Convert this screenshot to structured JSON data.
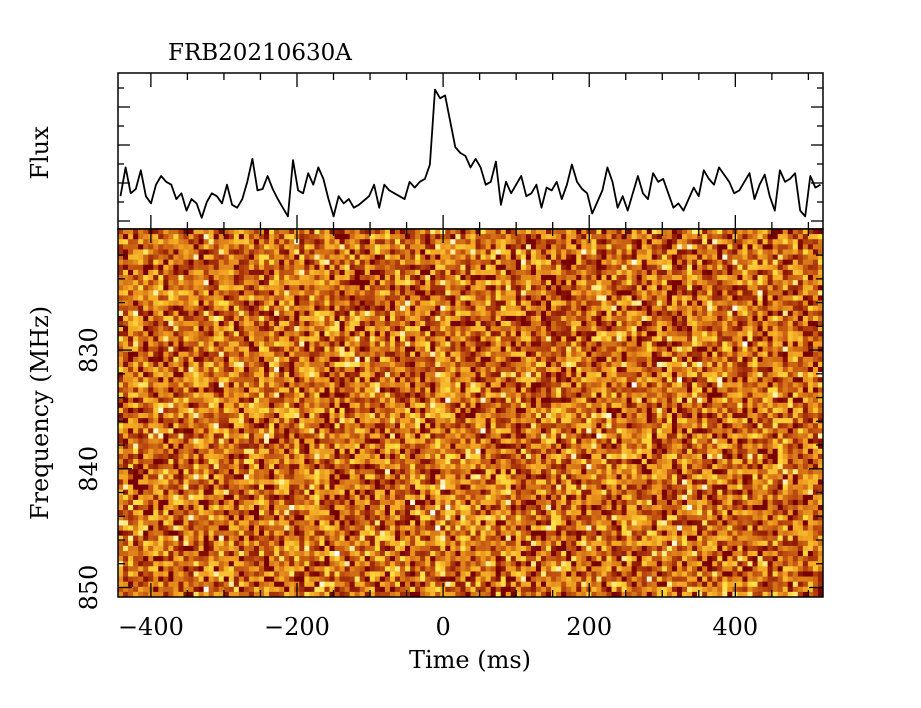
{
  "chart_data": [
    {
      "type": "line",
      "title": "FRB20210630A",
      "ylabel": "Flux",
      "xlim": [
        -445,
        520
      ],
      "series": [
        {
          "values": [
            0.2,
            0.4,
            0.22,
            0.25,
            0.38,
            0.2,
            0.15,
            0.28,
            0.34,
            0.3,
            0.28,
            0.18,
            0.22,
            0.1,
            0.18,
            0.15,
            0.05,
            0.16,
            0.22,
            0.2,
            0.15,
            0.28,
            0.14,
            0.12,
            0.18,
            0.3,
            0.46,
            0.24,
            0.25,
            0.34,
            0.25,
            0.18,
            0.12,
            0.06,
            0.45,
            0.24,
            0.22,
            0.36,
            0.28,
            0.4,
            0.32,
            0.18,
            0.06,
            0.2,
            0.15,
            0.18,
            0.12,
            0.14,
            0.17,
            0.2,
            0.28,
            0.12,
            0.28,
            0.24,
            0.22,
            0.2,
            0.18,
            0.3,
            0.26,
            0.3,
            0.32,
            0.42,
            0.94,
            0.88,
            0.9,
            0.72,
            0.54,
            0.5,
            0.48,
            0.4,
            0.46,
            0.4,
            0.28,
            0.3,
            0.44,
            0.14,
            0.3,
            0.22,
            0.28,
            0.34,
            0.2,
            0.22,
            0.28,
            0.12,
            0.26,
            0.24,
            0.3,
            0.18,
            0.28,
            0.42,
            0.3,
            0.25,
            0.22,
            0.08,
            0.16,
            0.24,
            0.4,
            0.3,
            0.12,
            0.2,
            0.1,
            0.22,
            0.34,
            0.22,
            0.18,
            0.36,
            0.3,
            0.32,
            0.22,
            0.12,
            0.15,
            0.1,
            0.18,
            0.26,
            0.2,
            0.38,
            0.32,
            0.28,
            0.4,
            0.35,
            0.3,
            0.22,
            0.24,
            0.3,
            0.36,
            0.18,
            0.28,
            0.35,
            0.2,
            0.1,
            0.38,
            0.3,
            0.32,
            0.36,
            0.1,
            0.06,
            0.34,
            0.26,
            0.28
          ]
        }
      ]
    },
    {
      "type": "heatmap",
      "xlabel": "Time (ms)",
      "ylabel": "Frequency (MHz)",
      "xlim": [
        -445,
        520
      ],
      "ylim": [
        850.8,
        819.8
      ],
      "x_ticks": [
        -400,
        -200,
        0,
        200,
        400
      ],
      "x_tick_labels": [
        "−400",
        "−200",
        "0",
        "200",
        "400"
      ],
      "y_ticks": [
        830,
        840,
        850
      ],
      "y_tick_labels": [
        "830",
        "840",
        "850"
      ],
      "n_time_bins": 140,
      "n_freq_bins": 72,
      "colormap": [
        "#ffffff",
        "#ffe040",
        "#f0a020",
        "#c05010",
        "#780000"
      ],
      "burst_time_ms": -5
    }
  ]
}
